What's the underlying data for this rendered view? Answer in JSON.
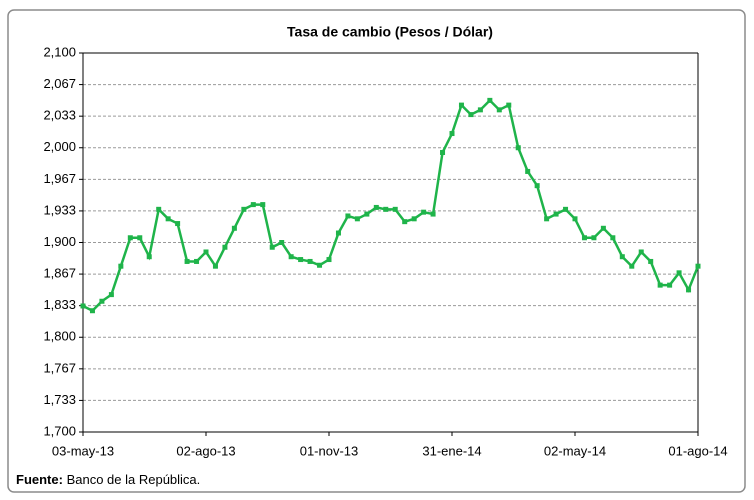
{
  "chart_data": {
    "type": "line",
    "title": "Tasa de cambio (Pesos / Dólar)",
    "x": [
      "2013-05-03",
      "2013-05-10",
      "2013-05-17",
      "2013-05-24",
      "2013-05-31",
      "2013-06-07",
      "2013-06-14",
      "2013-06-21",
      "2013-06-28",
      "2013-07-05",
      "2013-07-12",
      "2013-07-19",
      "2013-07-26",
      "2013-08-02",
      "2013-08-09",
      "2013-08-16",
      "2013-08-23",
      "2013-08-30",
      "2013-09-06",
      "2013-09-13",
      "2013-09-20",
      "2013-09-27",
      "2013-10-04",
      "2013-10-11",
      "2013-10-18",
      "2013-10-25",
      "2013-11-01",
      "2013-11-08",
      "2013-11-15",
      "2013-11-22",
      "2013-11-29",
      "2013-12-06",
      "2013-12-13",
      "2013-12-20",
      "2013-12-27",
      "2014-01-03",
      "2014-01-10",
      "2014-01-17",
      "2014-01-24",
      "2014-01-31",
      "2014-02-07",
      "2014-02-14",
      "2014-02-21",
      "2014-02-28",
      "2014-03-07",
      "2014-03-14",
      "2014-03-21",
      "2014-03-28",
      "2014-04-04",
      "2014-04-11",
      "2014-04-18",
      "2014-04-25",
      "2014-05-02",
      "2014-05-09",
      "2014-05-16",
      "2014-05-23",
      "2014-05-30",
      "2014-06-06",
      "2014-06-13",
      "2014-06-20",
      "2014-06-27",
      "2014-07-04",
      "2014-07-11",
      "2014-07-18",
      "2014-07-25",
      "2014-08-01"
    ],
    "series": [
      {
        "color": "#1fb44a",
        "values": [
          1833,
          1828,
          1838,
          1845,
          1875,
          1905,
          1905,
          1885,
          1935,
          1925,
          1920,
          1880,
          1880,
          1890,
          1875,
          1895,
          1915,
          1935,
          1940,
          1940,
          1895,
          1900,
          1885,
          1882,
          1880,
          1876,
          1882,
          1910,
          1928,
          1925,
          1930,
          1937,
          1935,
          1935,
          1922,
          1925,
          1932,
          1930,
          1995,
          2015,
          2045,
          2035,
          2040,
          2050,
          2040,
          2045,
          2000,
          1975,
          1960,
          1925,
          1930,
          1935,
          1925,
          1905,
          1905,
          1915,
          1905,
          1885,
          1875,
          1890,
          1880,
          1855,
          1855,
          1868,
          1850,
          1875
        ]
      }
    ],
    "xlim": [
      "2013-05-03",
      "2014-08-01"
    ],
    "xticks": [
      {
        "value": "2013-05-03",
        "label": "03-may-13"
      },
      {
        "value": "2013-08-02",
        "label": "02-ago-13"
      },
      {
        "value": "2013-11-01",
        "label": "01-nov-13"
      },
      {
        "value": "2014-01-31",
        "label": "31-ene-14"
      },
      {
        "value": "2014-05-02",
        "label": "02-may-14"
      },
      {
        "value": "2014-08-01",
        "label": "01-ago-14"
      }
    ],
    "ylim": [
      1700,
      2100
    ],
    "yticks": [
      {
        "value": 1700,
        "label": "1,700"
      },
      {
        "value": 1733.33,
        "label": "1,733"
      },
      {
        "value": 1766.67,
        "label": "1,767"
      },
      {
        "value": 1800,
        "label": "1,800"
      },
      {
        "value": 1833.33,
        "label": "1,833"
      },
      {
        "value": 1866.67,
        "label": "1,867"
      },
      {
        "value": 1900,
        "label": "1,900"
      },
      {
        "value": 1933.33,
        "label": "1,933"
      },
      {
        "value": 1966.67,
        "label": "1,967"
      },
      {
        "value": 2000,
        "label": "2,000"
      },
      {
        "value": 2033.33,
        "label": "2,033"
      },
      {
        "value": 2066.67,
        "label": "2,067"
      },
      {
        "value": 2100,
        "label": "2,100"
      }
    ],
    "grid": true,
    "source_label": "Fuente:",
    "source": "Banco de la República."
  }
}
